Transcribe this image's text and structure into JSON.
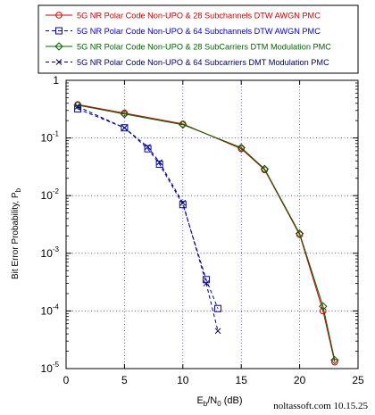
{
  "chart_data": {
    "type": "line",
    "xlabel_main": "E",
    "xlabel_sub1": "b",
    "xlabel_mid": "/N",
    "xlabel_sub2": "0",
    "xlabel_unit": " (dB)",
    "ylabel_main": "Bit Error Probability, P",
    "ylabel_sub": "b",
    "xlim": [
      0,
      25
    ],
    "ylim": [
      1e-05,
      1
    ],
    "yscale": "log",
    "grid": true,
    "legend_position": "top",
    "xticks": [
      0,
      5,
      10,
      15,
      20,
      25
    ],
    "yticks": [
      {
        "value": 1,
        "base": "1",
        "exp": ""
      },
      {
        "value": 0.1,
        "base": "10",
        "exp": "-1"
      },
      {
        "value": 0.01,
        "base": "10",
        "exp": "-2"
      },
      {
        "value": 0.001,
        "base": "10",
        "exp": "-3"
      },
      {
        "value": 0.0001,
        "base": "10",
        "exp": "-4"
      },
      {
        "value": 1e-05,
        "base": "10",
        "exp": "-5"
      }
    ],
    "series": [
      {
        "name": "5G NR Polar Code Non-UPO & 28 Subchannels DTW AWGN PMC",
        "color": "#cc0000",
        "marker": "circle",
        "dash": "solid",
        "x": [
          1,
          5,
          10,
          15,
          17,
          20,
          22,
          23
        ],
        "y": [
          0.38,
          0.27,
          0.175,
          0.065,
          0.028,
          0.0021,
          0.0001,
          1.3e-05
        ]
      },
      {
        "name": "5G NR Polar Code Non-UPO & 64 Subchannels DTW AWGN PMC",
        "color": "#0000cc",
        "marker": "square",
        "dash": "dashed",
        "x": [
          1,
          5,
          7,
          8,
          10,
          12,
          13
        ],
        "y": [
          0.32,
          0.15,
          0.065,
          0.035,
          0.007,
          0.00035,
          0.00011
        ]
      },
      {
        "name": "5G NR Polar Code Non-UPO & 28 SubCarriers DTM Modulation PMC",
        "color": "#006400",
        "marker": "diamond",
        "dash": "solid",
        "x": [
          1,
          5,
          10,
          15,
          17,
          20,
          22,
          23
        ],
        "y": [
          0.37,
          0.26,
          0.17,
          0.068,
          0.029,
          0.0022,
          0.00012,
          1.4e-05
        ]
      },
      {
        "name": "5G NR Polar Code Non-UPO & 64 Subcarriers DMT Modulation PMC",
        "color": "#000066",
        "marker": "x",
        "dash": "dashed",
        "x": [
          1,
          5,
          7,
          8,
          10,
          12,
          13
        ],
        "y": [
          0.35,
          0.15,
          0.07,
          0.038,
          0.0075,
          0.0003,
          4.5e-05
        ]
      }
    ]
  },
  "credit": "noltassoft.com 10.15.25"
}
